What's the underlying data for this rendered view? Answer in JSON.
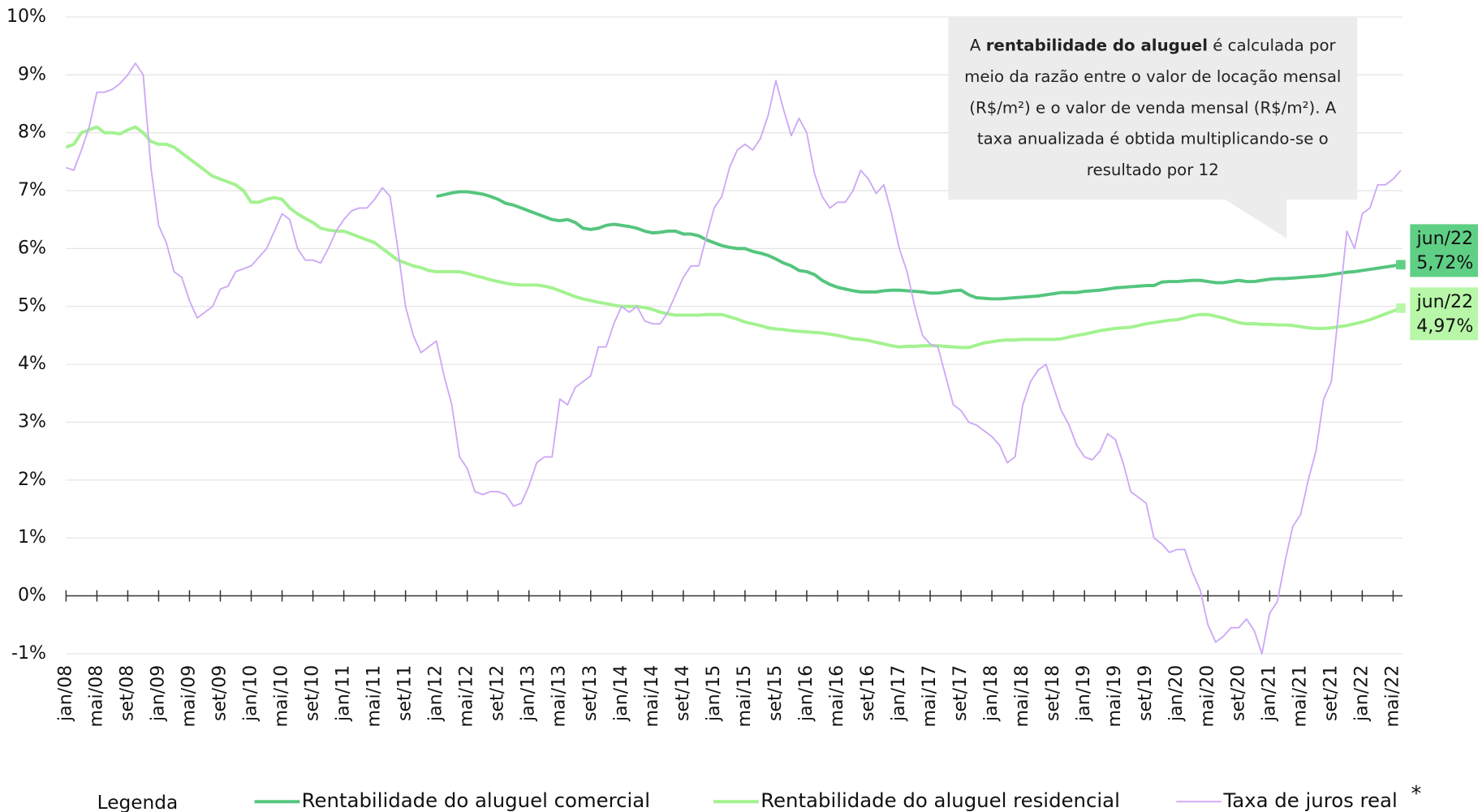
{
  "chart_data": {
    "type": "line",
    "categories": [
      "jan/08",
      null,
      null,
      null,
      "mai/08",
      null,
      null,
      null,
      "set/08",
      null,
      null,
      null,
      "jan/09",
      null,
      null,
      null,
      "mai/09",
      null,
      null,
      null,
      "set/09",
      null,
      null,
      null,
      "jan/10",
      null,
      null,
      null,
      "mai/10",
      null,
      null,
      null,
      "set/10",
      null,
      null,
      null,
      "jan/11",
      null,
      null,
      null,
      "mai/11",
      null,
      null,
      null,
      "set/11",
      null,
      null,
      null,
      "jan/12",
      null,
      null,
      null,
      "mai/12",
      null,
      null,
      null,
      "set/12",
      null,
      null,
      null,
      "jan/13",
      null,
      null,
      null,
      "mai/13",
      null,
      null,
      null,
      "set/13",
      null,
      null,
      null,
      "jan/14",
      null,
      null,
      null,
      "mai/14",
      null,
      null,
      null,
      "set/14",
      null,
      null,
      null,
      "jan/15",
      null,
      null,
      null,
      "mai/15",
      null,
      null,
      null,
      "set/15",
      null,
      null,
      null,
      "jan/16",
      null,
      null,
      null,
      "mai/16",
      null,
      null,
      null,
      "set/16",
      null,
      null,
      null,
      "jan/17",
      null,
      null,
      null,
      "mai/17",
      null,
      null,
      null,
      "set/17",
      null,
      null,
      null,
      "jan/18",
      null,
      null,
      null,
      "mai/18",
      null,
      null,
      null,
      "set/18",
      null,
      null,
      null,
      "jan/19",
      null,
      null,
      null,
      "mai/19",
      null,
      null,
      null,
      "set/19",
      null,
      null,
      null,
      "jan/20",
      null,
      null,
      null,
      "mai/20",
      null,
      null,
      null,
      "set/20",
      null,
      null,
      null,
      "jan/21",
      null,
      null,
      null,
      "mai/21",
      null,
      null,
      null,
      "set/21",
      null,
      null,
      null,
      "jan/22",
      null,
      null,
      null,
      "mai/22",
      null
    ],
    "series": [
      {
        "name": "Rentabilidade do aluguel comercial",
        "color": "#55c57e",
        "end_date": "jun/22",
        "end_label": "5,72%",
        "end_color": "#5fcf85",
        "values": [
          null,
          null,
          null,
          null,
          null,
          null,
          null,
          null,
          null,
          null,
          null,
          null,
          null,
          null,
          null,
          null,
          null,
          null,
          null,
          null,
          null,
          null,
          null,
          null,
          null,
          null,
          null,
          null,
          null,
          null,
          null,
          null,
          null,
          null,
          null,
          null,
          null,
          null,
          null,
          null,
          null,
          null,
          null,
          null,
          null,
          null,
          null,
          null,
          6.9,
          6.93,
          6.96,
          6.98,
          6.98,
          6.96,
          6.94,
          6.9,
          6.85,
          6.78,
          6.75,
          6.7,
          6.65,
          6.6,
          6.55,
          6.5,
          6.48,
          6.5,
          6.45,
          6.35,
          6.33,
          6.35,
          6.4,
          6.42,
          6.4,
          6.38,
          6.35,
          6.3,
          6.27,
          6.28,
          6.3,
          6.3,
          6.25,
          6.25,
          6.22,
          6.15,
          6.1,
          6.05,
          6.02,
          6.0,
          6.0,
          5.95,
          5.92,
          5.88,
          5.82,
          5.75,
          5.7,
          5.62,
          5.6,
          5.55,
          5.45,
          5.38,
          5.33,
          5.3,
          5.27,
          5.25,
          5.25,
          5.25,
          5.27,
          5.28,
          5.28,
          5.27,
          5.26,
          5.25,
          5.23,
          5.23,
          5.25,
          5.27,
          5.28,
          5.2,
          5.15,
          5.14,
          5.13,
          5.13,
          5.14,
          5.15,
          5.16,
          5.17,
          5.18,
          5.2,
          5.22,
          5.24,
          5.24,
          5.24,
          5.26,
          5.27,
          5.28,
          5.3,
          5.32,
          5.33,
          5.34,
          5.35,
          5.36,
          5.36,
          5.42,
          5.43,
          5.43,
          5.44,
          5.45,
          5.45,
          5.43,
          5.41,
          5.41,
          5.43,
          5.45,
          5.43,
          5.43,
          5.45,
          5.47,
          5.48,
          5.48,
          5.49,
          5.5,
          5.51,
          5.52,
          5.53,
          5.55,
          5.57,
          5.59,
          5.6,
          5.62,
          5.64,
          5.66,
          5.68,
          5.7,
          5.72
        ]
      },
      {
        "name": "Rentabilidade do aluguel residencial",
        "color": "#a3f290",
        "end_date": "jun/22",
        "end_label": "4,97%",
        "end_color": "#b8f7a8",
        "values": [
          7.75,
          7.8,
          8.0,
          8.05,
          8.1,
          8.0,
          8.0,
          7.98,
          8.05,
          8.1,
          8.0,
          7.85,
          7.8,
          7.8,
          7.75,
          7.65,
          7.55,
          7.45,
          7.35,
          7.25,
          7.2,
          7.15,
          7.1,
          7.0,
          6.8,
          6.8,
          6.85,
          6.88,
          6.85,
          6.7,
          6.6,
          6.52,
          6.45,
          6.35,
          6.32,
          6.3,
          6.3,
          6.25,
          6.2,
          6.15,
          6.1,
          6.0,
          5.9,
          5.8,
          5.75,
          5.7,
          5.67,
          5.62,
          5.6,
          5.6,
          5.6,
          5.6,
          5.57,
          5.53,
          5.5,
          5.46,
          5.43,
          5.4,
          5.38,
          5.37,
          5.37,
          5.37,
          5.35,
          5.32,
          5.27,
          5.22,
          5.17,
          5.13,
          5.1,
          5.07,
          5.05,
          5.02,
          5.0,
          5.0,
          5.0,
          4.98,
          4.95,
          4.9,
          4.87,
          4.85,
          4.85,
          4.85,
          4.85,
          4.86,
          4.86,
          4.86,
          4.82,
          4.78,
          4.73,
          4.7,
          4.67,
          4.63,
          4.61,
          4.6,
          4.58,
          4.57,
          4.56,
          4.55,
          4.54,
          4.52,
          4.5,
          4.47,
          4.44,
          4.43,
          4.41,
          4.38,
          4.35,
          4.32,
          4.3,
          4.31,
          4.31,
          4.32,
          4.32,
          4.32,
          4.31,
          4.3,
          4.29,
          4.29,
          4.33,
          4.37,
          4.39,
          4.41,
          4.42,
          4.42,
          4.43,
          4.43,
          4.43,
          4.43,
          4.43,
          4.44,
          4.47,
          4.5,
          4.52,
          4.55,
          4.58,
          4.6,
          4.62,
          4.63,
          4.64,
          4.67,
          4.7,
          4.72,
          4.74,
          4.76,
          4.77,
          4.8,
          4.84,
          4.86,
          4.86,
          4.83,
          4.8,
          4.76,
          4.72,
          4.7,
          4.7,
          4.69,
          4.69,
          4.68,
          4.68,
          4.67,
          4.65,
          4.63,
          4.62,
          4.62,
          4.63,
          4.65,
          4.67,
          4.7,
          4.73,
          4.77,
          4.82,
          4.87,
          4.92,
          4.97
        ]
      },
      {
        "name": "Taxa de juros real",
        "color": "#cda9f5",
        "values": [
          7.4,
          7.35,
          7.7,
          8.1,
          8.7,
          8.7,
          8.75,
          8.85,
          9.0,
          9.2,
          9.0,
          7.4,
          6.4,
          6.1,
          5.6,
          5.5,
          5.1,
          4.8,
          4.9,
          5.0,
          5.3,
          5.35,
          5.6,
          5.65,
          5.7,
          5.85,
          6.0,
          6.3,
          6.6,
          6.5,
          6.0,
          5.8,
          5.8,
          5.75,
          6.0,
          6.3,
          6.5,
          6.65,
          6.7,
          6.7,
          6.85,
          7.05,
          6.9,
          6.0,
          5.0,
          4.5,
          4.2,
          4.3,
          4.4,
          3.8,
          3.3,
          2.4,
          2.2,
          1.8,
          1.75,
          1.8,
          1.8,
          1.75,
          1.55,
          1.6,
          1.9,
          2.3,
          2.4,
          2.4,
          3.4,
          3.3,
          3.6,
          3.7,
          3.8,
          4.3,
          4.3,
          4.7,
          5.0,
          4.9,
          5.0,
          4.75,
          4.7,
          4.7,
          4.9,
          5.2,
          5.5,
          5.7,
          5.7,
          6.2,
          6.7,
          6.9,
          7.4,
          7.7,
          7.8,
          7.7,
          7.9,
          8.3,
          8.9,
          8.4,
          7.95,
          8.25,
          8.0,
          7.3,
          6.9,
          6.7,
          6.8,
          6.8,
          7.0,
          7.35,
          7.2,
          6.95,
          7.1,
          6.6,
          6.0,
          5.6,
          5.0,
          4.5,
          4.35,
          4.3,
          3.8,
          3.3,
          3.2,
          3.0,
          2.95,
          2.85,
          2.75,
          2.6,
          2.3,
          2.4,
          3.3,
          3.7,
          3.9,
          4.0,
          3.6,
          3.2,
          2.95,
          2.6,
          2.4,
          2.35,
          2.5,
          2.8,
          2.7,
          2.3,
          1.8,
          1.7,
          1.6,
          1.0,
          0.9,
          0.75,
          0.8,
          0.8,
          0.4,
          0.1,
          -0.5,
          -0.8,
          -0.7,
          -0.55,
          -0.55,
          -0.4,
          -0.6,
          -1.0,
          -0.3,
          -0.1,
          0.6,
          1.2,
          1.4,
          2.0,
          2.5,
          3.4,
          3.7,
          5.0,
          6.3,
          6.0,
          6.6,
          6.7,
          7.1,
          7.1,
          7.2,
          7.35
        ]
      }
    ],
    "ylim": [
      -1,
      10
    ],
    "yticks": [
      {
        "value": -1,
        "label": "-1%"
      },
      {
        "value": 0,
        "label": "0%"
      },
      {
        "value": 1,
        "label": "1%"
      },
      {
        "value": 2,
        "label": "2%"
      },
      {
        "value": 3,
        "label": "3%"
      },
      {
        "value": 4,
        "label": "4%"
      },
      {
        "value": 5,
        "label": "5%"
      },
      {
        "value": 6,
        "label": "6%"
      },
      {
        "value": 7,
        "label": "7%"
      },
      {
        "value": 8,
        "label": "8%"
      },
      {
        "value": 9,
        "label": "9%"
      },
      {
        "value": 10,
        "label": "10%"
      }
    ],
    "grid": true,
    "note": {
      "before": "A ",
      "bold": "rentabilidade do aluguel",
      "after": " é calculada por meio da razão entre o valor de locação mensal (R$/m²) e o valor de venda mensal (R$/m²).  A taxa anualizada é obtida multiplicando-se  o resultado por 12"
    },
    "legend_title": "Legenda",
    "footnote_mark": "*"
  }
}
